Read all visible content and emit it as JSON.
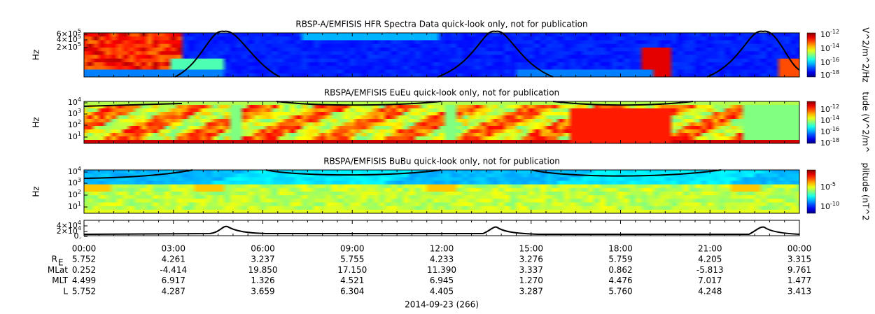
{
  "panels": [
    {
      "title": "RBSP-A/EMFISIS  HFR Spectra Data quick-look only, not for publication",
      "y_label": "Hz",
      "y_ticks": [
        {
          "base": "6×10",
          "exp": "5"
        },
        {
          "base": "4×10",
          "exp": "5"
        },
        {
          "base": "2×10",
          "exp": "5"
        }
      ],
      "colorbar_label": "V^2/m^2/Hz",
      "colorbar_ticks": [
        {
          "base": "10",
          "exp": "-12"
        },
        {
          "base": "10",
          "exp": "-14"
        },
        {
          "base": "10",
          "exp": "-16"
        },
        {
          "base": "10",
          "exp": "-18"
        }
      ]
    },
    {
      "title": "RBSPA/EMFISIS  EuEu quick-look only, not for publication",
      "y_label": "Hz",
      "y_ticks": [
        {
          "base": "10",
          "exp": "4"
        },
        {
          "base": "10",
          "exp": "3"
        },
        {
          "base": "10",
          "exp": "2"
        },
        {
          "base": "10",
          "exp": "1"
        }
      ],
      "colorbar_label": "tude (V^2/m^",
      "colorbar_ticks": [
        {
          "base": "10",
          "exp": "-12"
        },
        {
          "base": "10",
          "exp": "-14"
        },
        {
          "base": "10",
          "exp": "-16"
        },
        {
          "base": "10",
          "exp": "-18"
        }
      ]
    },
    {
      "title": "RBSPA/EMFISIS  BuBu quick-look only, not for publication",
      "y_label": "Hz",
      "y_ticks": [
        {
          "base": "10",
          "exp": "4"
        },
        {
          "base": "10",
          "exp": "3"
        },
        {
          "base": "10",
          "exp": "2"
        },
        {
          "base": "10",
          "exp": "1"
        }
      ],
      "colorbar_label": "plitude (nT^2",
      "colorbar_ticks": [
        {
          "base": "10",
          "exp": "-5"
        },
        {
          "base": "10",
          "exp": "-10"
        }
      ]
    },
    {
      "y_ticks": [
        {
          "base": "4×10",
          "exp": "4"
        },
        {
          "base": "2×10",
          "exp": "4"
        },
        {
          "base": "0."
        }
      ]
    }
  ],
  "time_ticks": [
    "00:00",
    "03:00",
    "06:00",
    "09:00",
    "12:00",
    "15:00",
    "18:00",
    "21:00",
    "00:00"
  ],
  "ephemeris": [
    {
      "label": "R",
      "label_sub": "E",
      "values": [
        "5.752",
        "4.261",
        "3.237",
        "5.755",
        "4.233",
        "3.276",
        "5.759",
        "4.205",
        "3.315"
      ]
    },
    {
      "label": "MLat",
      "values": [
        "0.252",
        "-4.414",
        "19.850",
        "17.150",
        "11.390",
        "3.337",
        "0.862",
        "-5.813",
        "9.761"
      ]
    },
    {
      "label": "MLT",
      "values": [
        "4.499",
        "6.917",
        "1.326",
        "4.521",
        "6.945",
        "1.270",
        "4.476",
        "7.017",
        "1.477"
      ]
    },
    {
      "label": "L",
      "values": [
        "5.752",
        "4.287",
        "3.659",
        "6.304",
        "4.405",
        "3.287",
        "5.760",
        "4.248",
        "3.413"
      ]
    }
  ],
  "date": "2014-09-23 (266)"
}
